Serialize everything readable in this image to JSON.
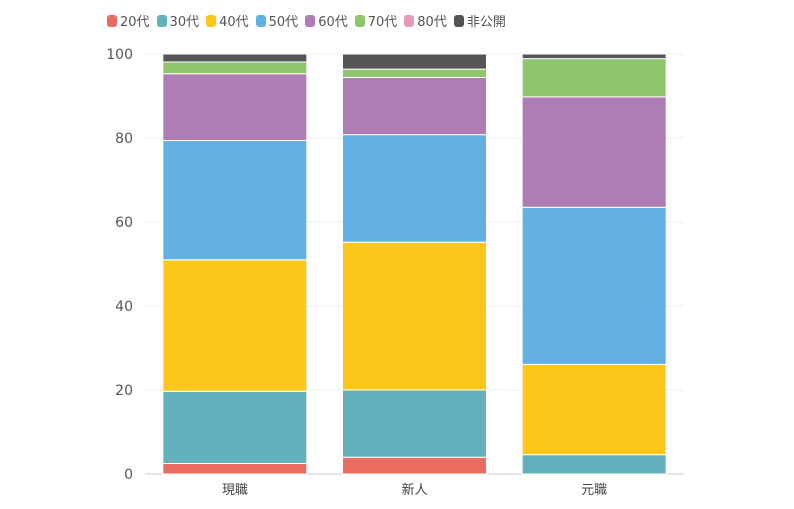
{
  "chart_data": {
    "type": "bar",
    "stacked": true,
    "categories": [
      "現職",
      "新人",
      "元職"
    ],
    "series": [
      {
        "name": "20代",
        "color": "#ea6b5f",
        "values": [
          2.5,
          4.0,
          0.0
        ]
      },
      {
        "name": "30代",
        "color": "#65b0bd",
        "values": [
          17.2,
          16.0,
          4.6
        ]
      },
      {
        "name": "40代",
        "color": "#fcc719",
        "values": [
          31.3,
          35.2,
          21.5
        ]
      },
      {
        "name": "50代",
        "color": "#63b0e2",
        "values": [
          28.4,
          25.6,
          37.4
        ]
      },
      {
        "name": "60代",
        "color": "#b07cb5",
        "values": [
          15.9,
          13.6,
          26.3
        ]
      },
      {
        "name": "70代",
        "color": "#8dc66c",
        "values": [
          2.8,
          2.0,
          9.1
        ]
      },
      {
        "name": "80代",
        "color": "#e898bb",
        "values": [
          0.0,
          0.0,
          0.0
        ]
      },
      {
        "name": "非公開",
        "color": "#555555",
        "values": [
          1.9,
          3.6,
          1.1
        ]
      }
    ],
    "yticks": [
      0,
      20,
      40,
      60,
      80,
      100
    ],
    "ylim": [
      0,
      100
    ],
    "title": "",
    "xlabel": "",
    "ylabel": "",
    "grid": true,
    "legend_position": "top-left"
  }
}
